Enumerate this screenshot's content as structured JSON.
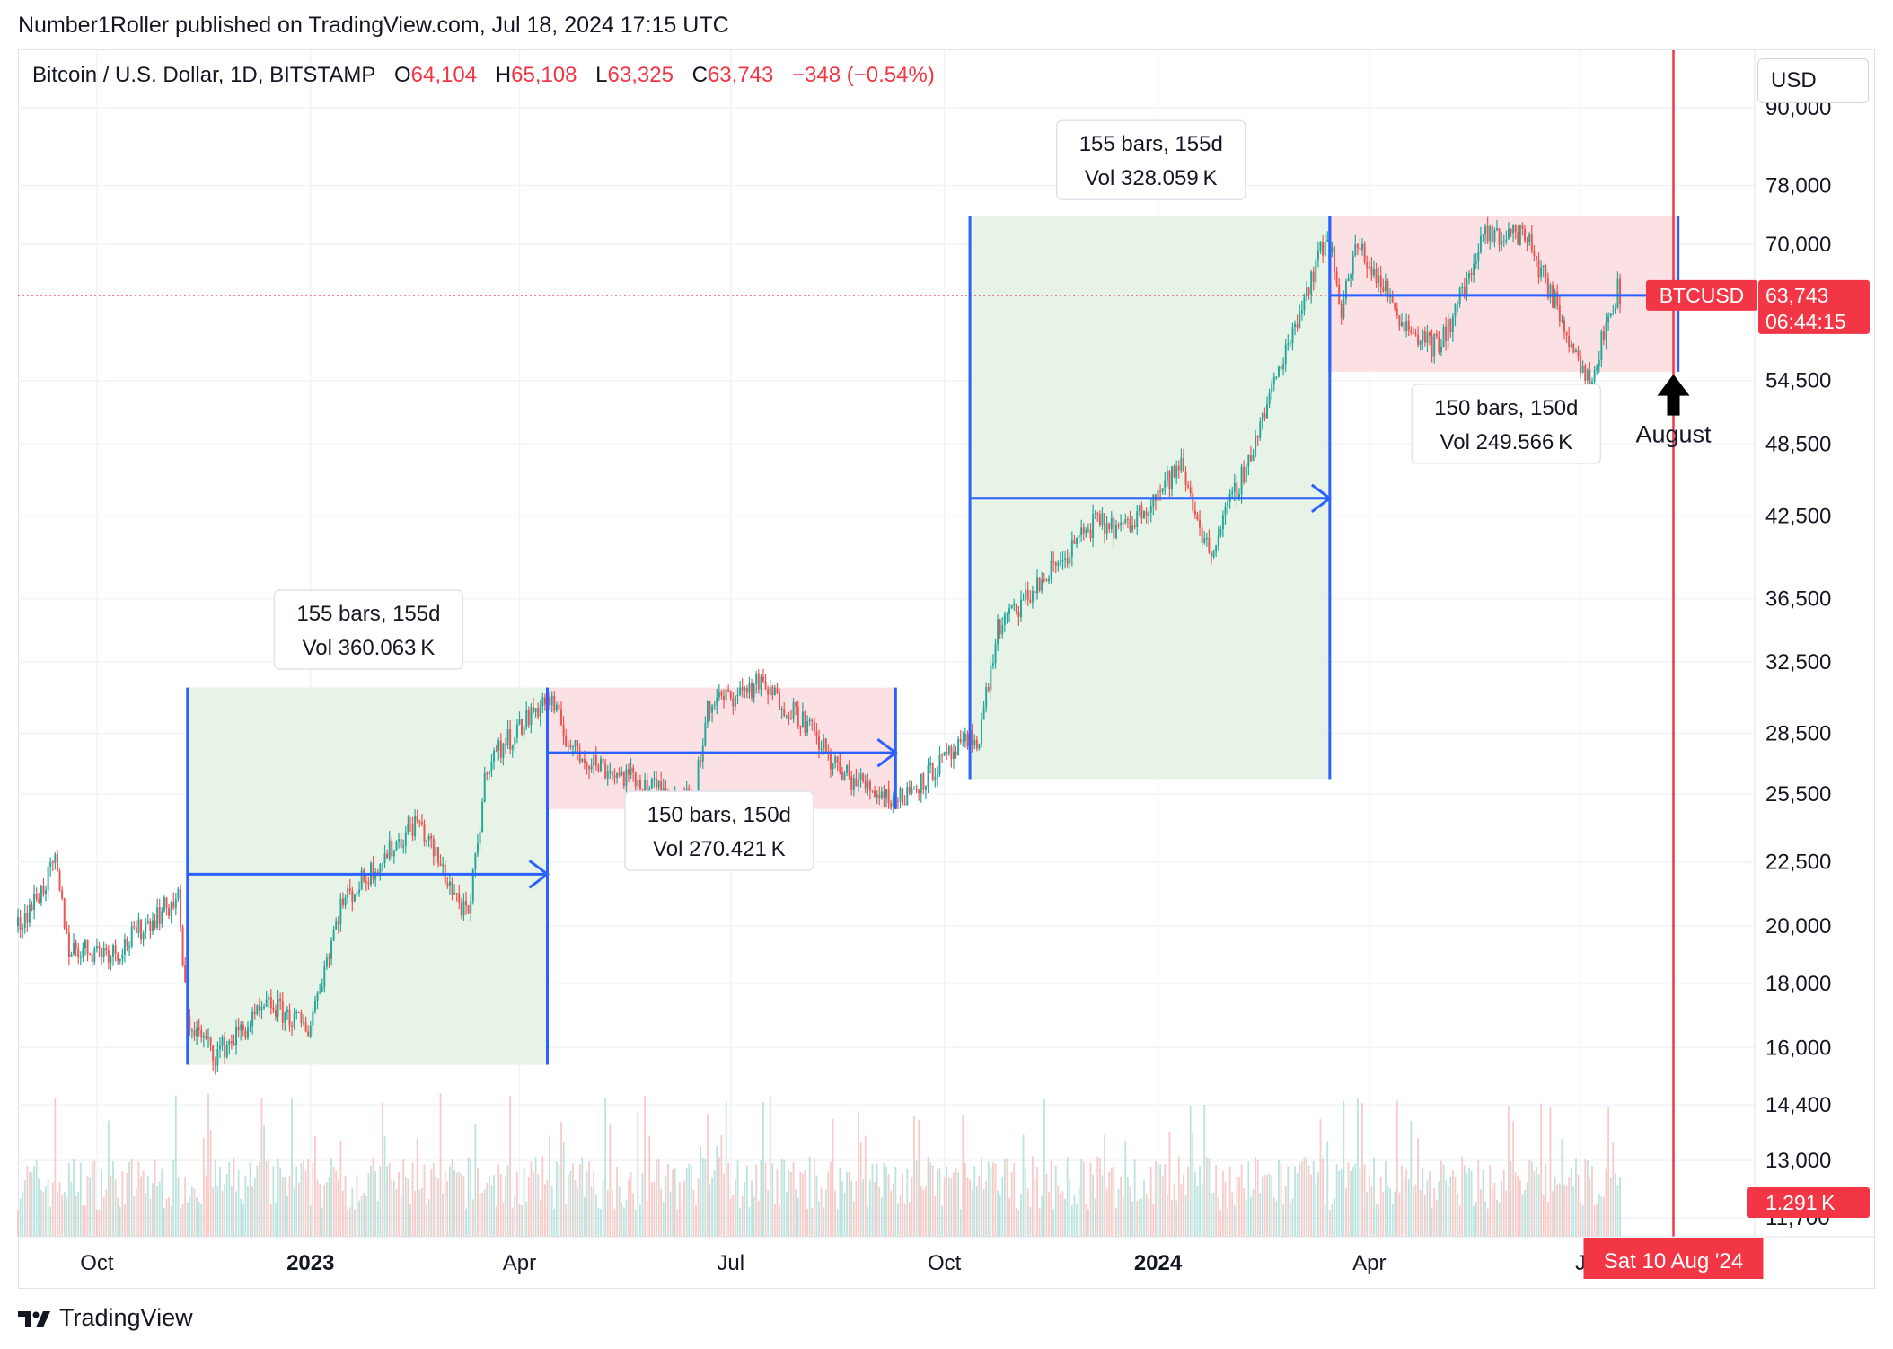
{
  "header": {
    "publisher": "Number1Roller published on TradingView.com, Jul 18, 2024 17:15 UTC"
  },
  "legend": {
    "symbol": "Bitcoin / U.S. Dollar, 1D, BITSTAMP",
    "o_label": "O",
    "open": "64,104",
    "h_label": "H",
    "high": "65,108",
    "l_label": "L",
    "low": "63,325",
    "c_label": "C",
    "close": "63,743",
    "change": "−348 (−0.54%)"
  },
  "currency_button": "USD",
  "footer": {
    "brand": "TradingView"
  },
  "colors": {
    "up": "#26a69a",
    "down": "#ef5350",
    "accent_blue": "#2962ff",
    "red_line": "#f23645",
    "green_zone": "#e3f1e3",
    "red_zone": "#fbdcdf"
  },
  "chart_data": {
    "type": "candlestick",
    "symbol": "BTCUSD",
    "interval": "1D",
    "y_scale": "log",
    "ylim": [
      11300,
      100000
    ],
    "x_range": [
      "2022-08-28",
      "2024-09-14"
    ],
    "y_ticks": [
      "90,000",
      "78,000",
      "70,000",
      "54,500",
      "48,500",
      "42,500",
      "36,500",
      "32,500",
      "28,500",
      "25,500",
      "22,500",
      "20,000",
      "18,000",
      "16,000",
      "14,400",
      "13,000",
      "11,700"
    ],
    "x_ticks": [
      {
        "date": "2022-10-01",
        "label": "Oct",
        "bold": false
      },
      {
        "date": "2023-01-01",
        "label": "2023",
        "bold": true
      },
      {
        "date": "2023-04-01",
        "label": "Apr",
        "bold": false
      },
      {
        "date": "2023-07-01",
        "label": "Jul",
        "bold": false
      },
      {
        "date": "2023-10-01",
        "label": "Oct",
        "bold": false
      },
      {
        "date": "2024-01-01",
        "label": "2024",
        "bold": true
      },
      {
        "date": "2024-04-01",
        "label": "Apr",
        "bold": false
      },
      {
        "date": "2024-07-01",
        "label": "J",
        "bold": false
      }
    ],
    "last_price": {
      "symbol_label": "BTCUSD",
      "value": "63,743",
      "price": 63743,
      "countdown": "06:44:15"
    },
    "volume_label": "1.291 K",
    "cursor": {
      "date": "2024-08-10",
      "label": "Sat 10 Aug '24"
    },
    "price_path": [
      [
        "2022-08-28",
        20000
      ],
      [
        "2022-09-08",
        21500
      ],
      [
        "2022-09-13",
        22400
      ],
      [
        "2022-09-19",
        19200
      ],
      [
        "2022-10-10",
        19100
      ],
      [
        "2022-10-25",
        20300
      ],
      [
        "2022-11-05",
        21000
      ],
      [
        "2022-11-09",
        16800
      ],
      [
        "2022-11-21",
        15800
      ],
      [
        "2022-12-15",
        17300
      ],
      [
        "2022-12-31",
        16550
      ],
      [
        "2023-01-14",
        20800
      ],
      [
        "2023-02-16",
        24300
      ],
      [
        "2023-03-10",
        20200
      ],
      [
        "2023-03-18",
        27000
      ],
      [
        "2023-04-11",
        30200
      ],
      [
        "2023-04-14",
        30300
      ],
      [
        "2023-04-24",
        27600
      ],
      [
        "2023-05-12",
        26500
      ],
      [
        "2023-06-15",
        25100
      ],
      [
        "2023-06-21",
        30000
      ],
      [
        "2023-07-13",
        31200
      ],
      [
        "2023-08-01",
        29300
      ],
      [
        "2023-08-17",
        26500
      ],
      [
        "2023-09-11",
        25200
      ],
      [
        "2023-09-30",
        27000
      ],
      [
        "2023-10-16",
        28400
      ],
      [
        "2023-10-24",
        34500
      ],
      [
        "2023-11-10",
        37300
      ],
      [
        "2023-12-04",
        41900
      ],
      [
        "2023-12-18",
        41500
      ],
      [
        "2024-01-11",
        46600
      ],
      [
        "2024-01-23",
        39600
      ],
      [
        "2024-02-09",
        47100
      ],
      [
        "2024-02-28",
        60000
      ],
      [
        "2024-03-14",
        71400
      ],
      [
        "2024-03-20",
        62500
      ],
      [
        "2024-03-27",
        70000
      ],
      [
        "2024-04-17",
        60300
      ],
      [
        "2024-05-01",
        57800
      ],
      [
        "2024-05-21",
        71000
      ],
      [
        "2024-06-07",
        71500
      ],
      [
        "2024-06-24",
        60300
      ],
      [
        "2024-07-05",
        54500
      ],
      [
        "2024-07-17",
        64500
      ],
      [
        "2024-07-18",
        63743
      ]
    ],
    "zones": [
      {
        "kind": "green",
        "start": "2022-11-09",
        "end": "2023-04-13",
        "low": 15500,
        "high": 31000,
        "mid": 22000
      },
      {
        "kind": "red",
        "start": "2023-04-13",
        "end": "2023-09-10",
        "low": 24800,
        "high": 31000,
        "mid": 27500
      },
      {
        "kind": "green",
        "start": "2023-10-12",
        "end": "2024-03-15",
        "low": 26200,
        "high": 73800,
        "mid": 43900
      },
      {
        "kind": "red",
        "start": "2024-03-15",
        "end": "2024-08-12",
        "low": 55400,
        "high": 73800,
        "mid": 63743
      }
    ],
    "annotations": [
      {
        "line1": "155 bars, 155d",
        "line2": "Vol 360.063 K",
        "date": "2023-01-26",
        "price": 34600,
        "placement": "above"
      },
      {
        "line1": "150 bars, 150d",
        "line2": "Vol 270.421 K",
        "date": "2023-06-26",
        "price": 23900,
        "placement": "below"
      },
      {
        "line1": "155 bars, 155d",
        "line2": "Vol 328.059 K",
        "date": "2023-12-29",
        "price": 82000,
        "placement": "above"
      },
      {
        "line1": "150 bars, 150d",
        "line2": "Vol 249.566 K",
        "date": "2024-05-30",
        "price": 50500,
        "placement": "below"
      }
    ],
    "arrow_annotation": {
      "text": "August",
      "date": "2024-08-10",
      "price": 53000
    }
  }
}
